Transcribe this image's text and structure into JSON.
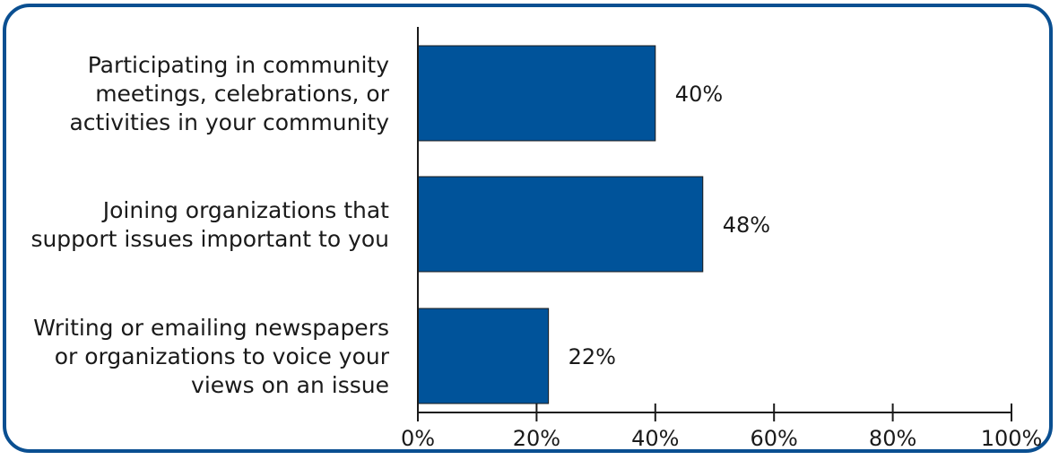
{
  "colors": {
    "bar": "#00539a",
    "frame": "#0a4f91",
    "text": "#1a1a1a"
  },
  "chart_data": {
    "type": "bar",
    "orientation": "horizontal",
    "categories": [
      [
        "Participating in community",
        "meetings, celebrations, or",
        "activities in your community"
      ],
      [
        "Joining organizations that",
        "support issues important to you"
      ],
      [
        "Writing or emailing newspapers",
        "or organizations to voice your",
        "views on an issue"
      ]
    ],
    "values": [
      40,
      48,
      22
    ],
    "value_labels": [
      "40%",
      "48%",
      "22%"
    ],
    "xlim": [
      0,
      100
    ],
    "x_ticks": [
      0,
      20,
      40,
      60,
      80,
      100
    ],
    "x_tick_labels": [
      "0%",
      "20%",
      "40%",
      "60%",
      "80%",
      "100%"
    ],
    "grid": false,
    "legend": "none"
  }
}
